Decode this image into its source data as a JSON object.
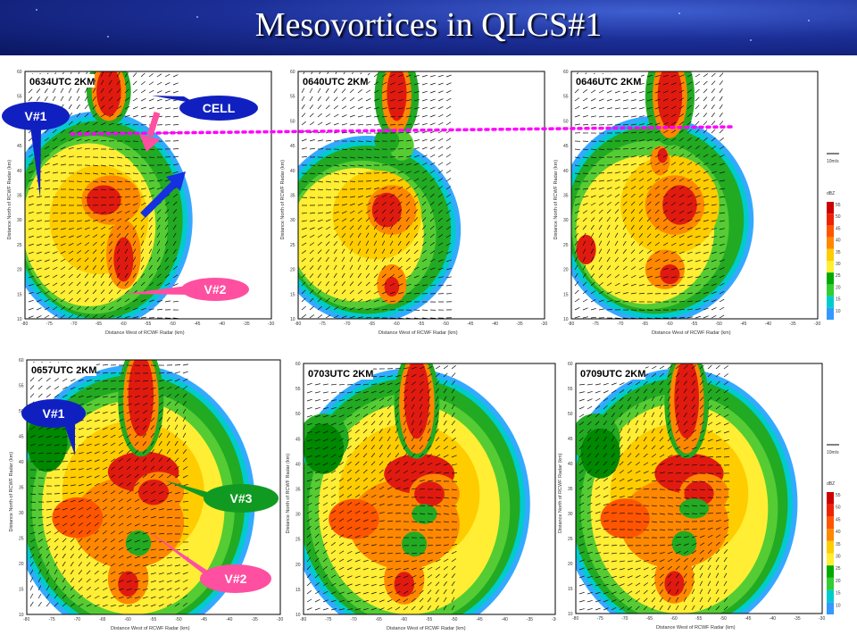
{
  "title": "Mesovortices in QLCS#1",
  "panels": [
    {
      "label": "0634UTC 2KM"
    },
    {
      "label": "0640UTC 2KM"
    },
    {
      "label": "0646UTC 2KM"
    },
    {
      "label": "0657UTC 2KM"
    },
    {
      "label": "0703UTC 2KM"
    },
    {
      "label": "0709UTC 2KM"
    }
  ],
  "annotations": {
    "cell": "CELL",
    "v1_top": "V#1",
    "v2_top": "V#2",
    "v1_bottom": "V#1",
    "v3_bottom": "V#3",
    "v2_bottom": "V#2"
  },
  "axes": {
    "xlabel": "Distance West of RCWF Radar (km)",
    "ylabel": "Distance North of RCWF Radar (km)",
    "x_ticks": [
      "-80",
      "-75",
      "-70",
      "-65",
      "-60",
      "-55",
      "-50",
      "-45",
      "-40",
      "-35",
      "-30"
    ],
    "y_ticks": [
      "60",
      "55",
      "50",
      "45",
      "40",
      "35",
      "30",
      "25",
      "20",
      "15",
      "10"
    ]
  },
  "colorbar": {
    "label": "dBZ",
    "ticks": [
      "55",
      "50",
      "45",
      "40",
      "35",
      "30",
      "25",
      "20",
      "15",
      "10"
    ],
    "colors": [
      "#cc0000",
      "#ee2200",
      "#ff5500",
      "#ff8800",
      "#ffcc00",
      "#ffee33",
      "#00aa00",
      "#33cc33",
      "#00cccc",
      "#3399ff"
    ],
    "scale_label": "10m/s"
  },
  "colors": {
    "title_bg": "#1c2f98",
    "callout_blue": "#1020c0",
    "callout_pink": "#ff4fa0",
    "callout_green": "#119a22",
    "arrow_blue": "#1530e0",
    "dotted_line": "#ff00ff"
  }
}
